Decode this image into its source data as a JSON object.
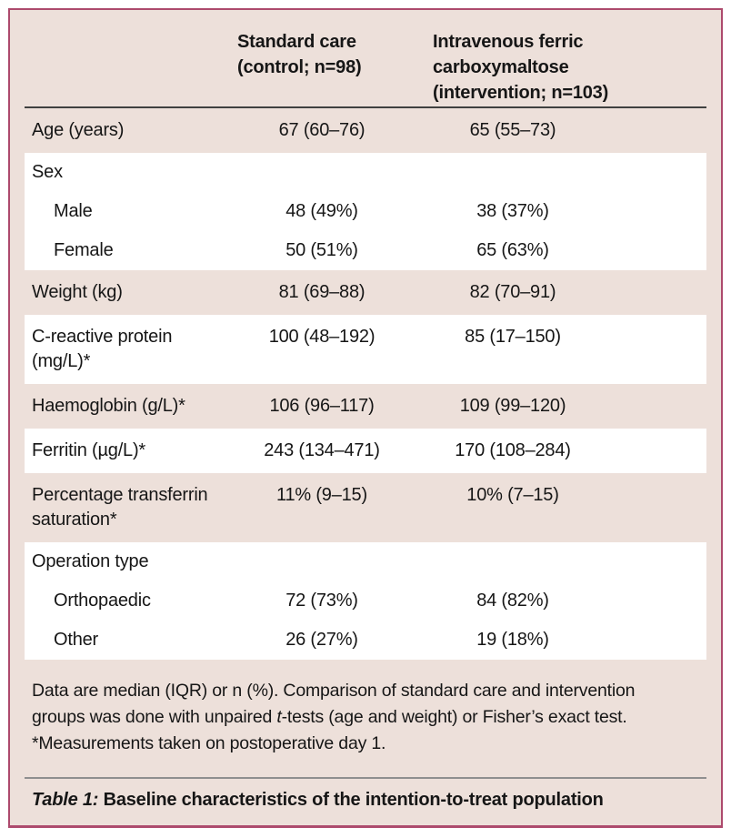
{
  "header": {
    "control_label": "Standard care (control; n=98)",
    "intervention_label": "Intravenous ferric carboxymaltose (intervention; n=103)"
  },
  "rows": [
    {
      "label": "Age (years)",
      "control": "67 (60–76)",
      "intervention": "65 (55–73)"
    },
    {
      "label": "Sex",
      "control": "",
      "intervention": ""
    },
    {
      "label": "Male",
      "control": "48 (49%)",
      "intervention": "38 (37%)"
    },
    {
      "label": "Female",
      "control": "50 (51%)",
      "intervention": "65 (63%)"
    },
    {
      "label": "Weight (kg)",
      "control": "81 (69–88)",
      "intervention": "82 (70–91)"
    },
    {
      "label": "C-reactive protein (mg/L)*",
      "control": "100 (48–192)",
      "intervention": "85 (17–150)"
    },
    {
      "label": "Haemoglobin (g/L)*",
      "control": "106 (96–117)",
      "intervention": "109 (99–120)"
    },
    {
      "label": "Ferritin (µg/L)*",
      "control": "243 (134–471)",
      "intervention": "170 (108–284)"
    },
    {
      "label": "Percentage transferrin saturation*",
      "control": "11% (9–15)",
      "intervention": "10% (7–15)"
    },
    {
      "label": "Operation type",
      "control": "",
      "intervention": ""
    },
    {
      "label": "Orthopaedic",
      "control": "72 (73%)",
      "intervention": "84 (82%)"
    },
    {
      "label": "Other",
      "control": "26 (27%)",
      "intervention": "19 (18%)"
    }
  ],
  "footnote": {
    "part1": "Data are median (IQR) or n (%). Comparison of standard care and intervention groups was done with unpaired ",
    "italic_t": "t",
    "part2": "-tests (age and weight) or Fisher’s exact test. *Measurements taken on postoperative day 1."
  },
  "caption": {
    "label": "Table 1:",
    "text": "Baseline characteristics of the intention-to-treat population"
  },
  "colors": {
    "card_border": "#ad4a6d",
    "card_bg": "#ede0da",
    "stripe_bg": "#ffffff",
    "text": "#161616",
    "header_rule": "#404040",
    "caption_rule": "#8f8f8f"
  }
}
